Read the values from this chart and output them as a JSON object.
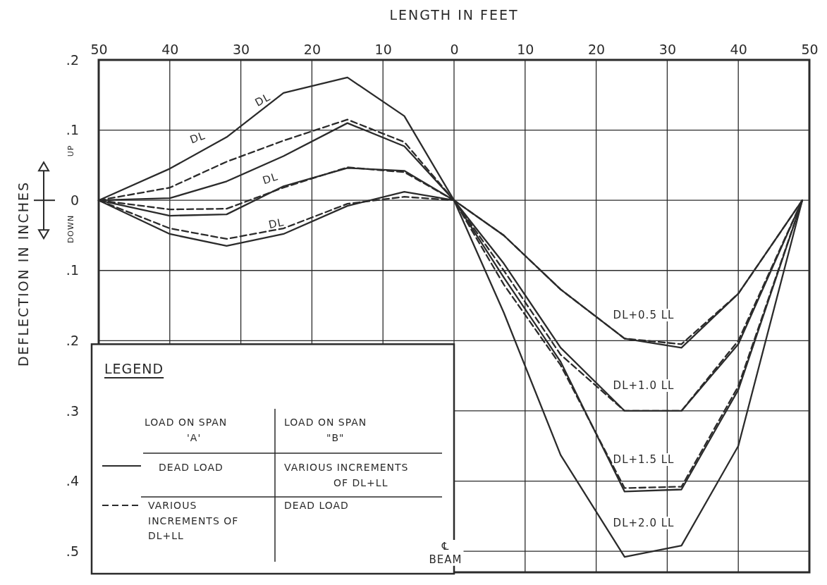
{
  "chart_data": {
    "type": "line",
    "xlabel": "LENGTH IN FEET",
    "ylabel": "DEFLECTION IN INCHES",
    "x": [
      -50,
      -40,
      -32,
      -24,
      -15,
      -7,
      0,
      7,
      15,
      24,
      32,
      40,
      49
    ],
    "xlim": [
      -50,
      50
    ],
    "xticks": [
      {
        "value": -50,
        "label": "50"
      },
      {
        "value": -40,
        "label": "40"
      },
      {
        "value": -30,
        "label": "30"
      },
      {
        "value": -20,
        "label": "20"
      },
      {
        "value": -10,
        "label": "10"
      },
      0,
      10,
      20,
      30,
      40,
      50
    ],
    "ylim": [
      -0.53,
      0.2
    ],
    "yticks": [
      {
        "value": 0.2,
        "label": ".2"
      },
      {
        "value": 0.1,
        "label": ".1"
      },
      0,
      {
        "value": -0.1,
        "label": ".1"
      },
      {
        "value": -0.2,
        "label": ".2"
      },
      {
        "value": -0.3,
        "label": ".3"
      },
      {
        "value": -0.4,
        "label": ".4"
      },
      {
        "value": -0.5,
        "label": ".5"
      }
    ],
    "grid": true,
    "series": [
      {
        "color": "#2b2b2b",
        "line_style": "solid",
        "values": [
          0,
          -0.048,
          -0.065,
          -0.048,
          -0.008,
          0.012,
          0,
          -0.05,
          -0.127,
          -0.197,
          -0.21,
          -0.133,
          0
        ]
      },
      {
        "color": "#2b2b2b",
        "line_style": "solid",
        "values": [
          0,
          -0.022,
          -0.02,
          0.02,
          0.046,
          0.042,
          0,
          -0.09,
          -0.21,
          -0.3,
          -0.3,
          -0.205,
          0
        ]
      },
      {
        "color": "#2b2b2b",
        "line_style": "solid",
        "values": [
          0,
          0.003,
          0.027,
          0.063,
          0.11,
          0.077,
          0,
          -0.11,
          -0.23,
          -0.415,
          -0.412,
          -0.27,
          0
        ]
      },
      {
        "color": "#2b2b2b",
        "line_style": "solid",
        "values": [
          0,
          0.045,
          0.09,
          0.153,
          0.175,
          0.12,
          0,
          -0.16,
          -0.363,
          -0.508,
          -0.492,
          -0.35,
          0
        ]
      },
      {
        "color": "#2b2b2b",
        "line_style": "dashed",
        "values": [
          0,
          -0.04,
          -0.055,
          -0.04,
          -0.005,
          0.005,
          0,
          -0.05,
          -0.127,
          -0.197,
          -0.205,
          -0.133,
          0
        ]
      },
      {
        "color": "#2b2b2b",
        "line_style": "dashed",
        "values": [
          0,
          -0.013,
          -0.012,
          0.018,
          0.047,
          0.04,
          0,
          -0.1,
          -0.22,
          -0.3,
          -0.3,
          -0.2,
          0
        ]
      },
      {
        "color": "#2b2b2b",
        "line_style": "dashed",
        "values": [
          0,
          0.018,
          0.055,
          0.085,
          0.115,
          0.083,
          0,
          -0.12,
          -0.235,
          -0.41,
          -0.408,
          -0.265,
          0
        ]
      }
    ],
    "annotations": [
      "DL",
      "DL",
      "DL",
      "DL",
      "DL+0.5 LL",
      "DL+1.0 LL",
      "DL+1.5 LL",
      "DL+2.0 LL",
      "℄\nBEAM",
      "UP",
      "DOWN",
      "LEGEND",
      "LOAD ON SPAN\n'A'",
      "LOAD ON SPAN\n\"B\"",
      "DEAD LOAD",
      "VARIOUS INCREMENTS\nOF DL+LL",
      "VARIOUS\nINCREMENTS OF\nDL+LL",
      "DEAD LOAD"
    ]
  }
}
